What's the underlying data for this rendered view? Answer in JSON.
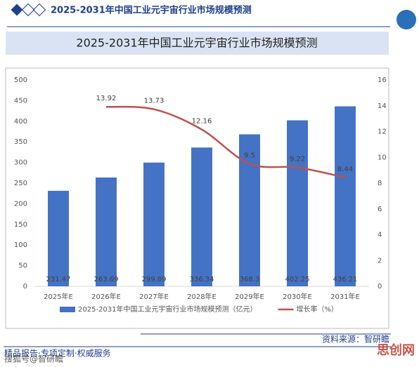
{
  "header": {
    "title": "2025-2031年中国工业元宇宙行业市场规模预测"
  },
  "chart_data": {
    "type": "bar-line",
    "title": "2025-2031年中国工业元宇宙行业市场规模预测",
    "categories": [
      "2025年E",
      "2026年E",
      "2027年E",
      "2028年E",
      "2029年E",
      "2030年E",
      "2031年E"
    ],
    "series": [
      {
        "name": "2025-2031年中国工业元宇宙行业市场规模预测（亿元）",
        "type": "bar",
        "color": "#4472c4",
        "values": [
          231.47,
          263.69,
          299.89,
          336.34,
          368.3,
          402.25,
          436.21
        ]
      },
      {
        "name": "增长率（%）",
        "type": "line",
        "axis": "y2",
        "color": "#c0504d",
        "values": [
          null,
          13.92,
          13.73,
          12.16,
          9.5,
          9.22,
          8.44
        ]
      }
    ],
    "ylim": [
      0,
      500
    ],
    "yticks": [
      0,
      50,
      100,
      150,
      200,
      250,
      300,
      350,
      400,
      450,
      500
    ],
    "y2lim": [
      0,
      16
    ],
    "y2ticks": [
      0,
      2,
      4,
      6,
      8,
      10,
      12,
      14,
      16
    ],
    "legend": "bottom",
    "grid": false
  },
  "source": "资料来源：智研瞻",
  "footer": "精品报告·专项定制·权威服务",
  "watermarks": [
    "搜狐号@智研瞻",
    "思创网"
  ]
}
